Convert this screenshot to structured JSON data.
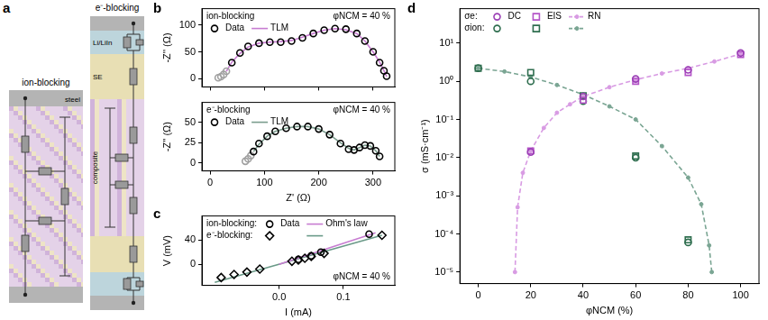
{
  "diagram": {
    "panel": "a",
    "ion_blocking": {
      "title": "ion-blocking",
      "current_collector": "steel"
    },
    "e_blocking": {
      "title": "e⁻-blocking",
      "electrode": "Li/LiIn",
      "electrolyte": "SE",
      "composite": "composite"
    }
  },
  "chart_data": [
    {
      "panel": "b",
      "type": "scatter",
      "grid": false,
      "legend": "upper left",
      "tick_labels": "y",
      "annotation": "φNCM = 40 %",
      "ylabel": "-Z'' (Ω)",
      "xlim": [
        -15,
        340
      ],
      "xticks": [
        0,
        100,
        200,
        300
      ],
      "ylim": [
        -15,
        130
      ],
      "yticks": [
        0,
        50,
        100
      ],
      "series": [
        {
          "name": "Data",
          "group": "ion-blocking",
          "marker": "open_circle",
          "line_style": "none",
          "colors": [
            "#a0a0a0",
            "#a0a0a0",
            "#a0a0a0",
            "#a0a0a0",
            "#000000",
            "#000000",
            "#000000",
            "#000000",
            "#000000",
            "#000000",
            "#000000",
            "#000000",
            "#000000",
            "#000000",
            "#000000",
            "#000000",
            "#000000",
            "#000000",
            "#000000",
            "#000000",
            "#000000",
            "#000000"
          ],
          "x": [
            15,
            20,
            25,
            30,
            40,
            55,
            70,
            90,
            110,
            130,
            150,
            170,
            190,
            210,
            230,
            250,
            270,
            285,
            300,
            312,
            320,
            325
          ],
          "values": [
            2,
            4,
            8,
            14,
            30,
            48,
            60,
            66,
            68,
            68,
            70,
            76,
            84,
            90,
            93,
            92,
            84,
            70,
            50,
            30,
            15,
            5
          ]
        },
        {
          "name": "TLM",
          "group": "ion-blocking",
          "marker": "none",
          "line_style": "solid",
          "color": "#c77cd1",
          "x": [
            30,
            40,
            55,
            70,
            90,
            110,
            130,
            150,
            170,
            190,
            210,
            230,
            250,
            270,
            285,
            300,
            312,
            320,
            325
          ],
          "values": [
            14,
            31,
            47,
            59,
            66,
            68,
            69,
            71,
            77,
            84,
            90,
            93,
            91,
            84,
            70,
            50,
            31,
            15,
            4
          ]
        }
      ]
    },
    {
      "type": "scatter",
      "grid": false,
      "legend": "upper left",
      "annotation": "φNCM = 40 %",
      "xlabel": "Z' (Ω)",
      "ylabel": "-Z'' (Ω)",
      "xlim": [
        -15,
        340
      ],
      "xticks": [
        0,
        100,
        200,
        300
      ],
      "ylim": [
        -10,
        75
      ],
      "yticks": [
        0,
        25,
        50
      ],
      "series": [
        {
          "name": "Data",
          "group": "e⁻-blocking",
          "marker": "open_circle",
          "line_style": "none",
          "colors": [
            "#a0a0a0",
            "#a0a0a0",
            "#a0a0a0",
            "#000000",
            "#000000",
            "#000000",
            "#000000",
            "#000000",
            "#000000",
            "#000000",
            "#000000",
            "#000000",
            "#000000",
            "#000000",
            "#000000",
            "#000000",
            "#000000",
            "#000000",
            "#000000",
            "#000000"
          ],
          "x": [
            65,
            70,
            75,
            80,
            90,
            105,
            120,
            140,
            160,
            180,
            200,
            220,
            240,
            255,
            265,
            275,
            285,
            295,
            305,
            312
          ],
          "values": [
            2,
            5,
            9,
            14,
            24,
            33,
            39,
            43,
            45,
            45,
            42,
            35,
            24,
            17,
            16,
            19,
            22,
            21,
            15,
            8
          ]
        },
        {
          "name": "TLM",
          "group": "e⁻-blocking",
          "marker": "none",
          "line_style": "solid",
          "color": "#7a9c8d",
          "x": [
            80,
            90,
            105,
            120,
            140,
            160,
            180,
            200,
            220,
            240,
            255,
            265,
            275,
            285,
            295,
            305,
            312
          ],
          "values": [
            14,
            23,
            33,
            39,
            43,
            45,
            45,
            42,
            35,
            25,
            18,
            16,
            19,
            22,
            21,
            15,
            8
          ]
        }
      ]
    },
    {
      "panel": "c",
      "type": "scatter",
      "grid": false,
      "legend": "upper left",
      "annotation": "φNCM = 40 %",
      "xlabel": "I (mA)",
      "ylabel": "V (mV)",
      "xlim": [
        -0.12,
        0.18
      ],
      "xticks": [
        {
          "value": 0,
          "label": "0.0"
        },
        0.1
      ],
      "ylim": [
        -35,
        80
      ],
      "yticks": [
        0,
        40
      ],
      "series": [
        {
          "name": "Data",
          "group": "ion-blocking:",
          "marker": "open_circle",
          "line_style": "none",
          "color": "#000000",
          "x": [
            0.03,
            0.05,
            0.065,
            0.14
          ],
          "values": [
            8,
            14,
            20,
            50
          ]
        },
        {
          "name": "Ohm's law",
          "group": "ion-blocking:",
          "marker": "none",
          "line_style": "solid",
          "color": "#c77cd1",
          "x": [
            0,
            0.15
          ],
          "values": [
            0,
            52
          ]
        },
        {
          "name": "Data",
          "group": "e⁻-blocking:",
          "marker": "open_diamond",
          "line_style": "none",
          "color": "#000000",
          "x": [
            -0.09,
            -0.07,
            -0.05,
            -0.03,
            0.02,
            0.03,
            0.04,
            0.05,
            0.07,
            0.16
          ],
          "values": [
            -22,
            -17,
            -13,
            -8,
            5,
            7,
            10,
            13,
            18,
            48
          ]
        },
        {
          "name": "Ohm's law",
          "group": "e⁻-blocking:",
          "marker": "none",
          "line_style": "solid",
          "color": "#6a9a88",
          "x": [
            -0.1,
            0.16
          ],
          "values": [
            -30,
            48
          ]
        }
      ]
    },
    {
      "panel": "d",
      "type": "scatter",
      "grid": false,
      "legend": "upper left",
      "log": "y",
      "xlabel": "φNCM (%)",
      "ylabel": "σ (mS·cm⁻¹)",
      "xlim": [
        -7,
        107
      ],
      "xticks": [
        0,
        20,
        40,
        60,
        80,
        100
      ],
      "ylim": [
        5e-06,
        80
      ],
      "yticks": [
        {
          "value": 1e-05,
          "label": "10⁻⁵"
        },
        {
          "value": 0.0001,
          "label": "10⁻⁴"
        },
        {
          "value": 0.001,
          "label": "10⁻³"
        },
        {
          "value": 0.01,
          "label": "10⁻²"
        },
        {
          "value": 0.1,
          "label": "10⁻¹"
        },
        {
          "value": 1,
          "label": "10⁰"
        },
        {
          "value": 10,
          "label": "10¹"
        }
      ],
      "series": [
        {
          "name": "DC",
          "group": "σe:",
          "marker": "open_circle",
          "line_style": "none",
          "color": "#9b3fb5",
          "x": [
            20,
            40,
            60,
            80,
            100
          ],
          "values": [
            0.014,
            0.4,
            1.15,
            2.0,
            5.5
          ]
        },
        {
          "name": "EIS",
          "group": "σe:",
          "marker": "open_square",
          "line_style": "none",
          "color": "#b455c8",
          "x": [
            20,
            40,
            60,
            80,
            100
          ],
          "values": [
            0.015,
            0.32,
            1.0,
            1.7,
            5.0
          ]
        },
        {
          "name": "RN",
          "group": "σe:",
          "marker": "dot",
          "line_style": "dashed",
          "color": "#d89be3",
          "x": [
            14,
            15,
            17,
            20,
            25,
            30,
            35,
            40,
            50,
            60,
            70,
            80,
            90,
            100
          ],
          "values": [
            1e-05,
            0.0005,
            0.004,
            0.015,
            0.06,
            0.15,
            0.25,
            0.4,
            0.7,
            1.1,
            1.6,
            2.2,
            3.3,
            5.2
          ]
        },
        {
          "name": "DC",
          "group": "σion:",
          "marker": "open_circle",
          "line_style": "none",
          "color": "#2f6e4f",
          "x": [
            0,
            20,
            40,
            60,
            80
          ],
          "values": [
            2.2,
            1.0,
            0.3,
            0.01,
            6e-05
          ]
        },
        {
          "name": "EIS",
          "group": "σion:",
          "marker": "open_square",
          "line_style": "none",
          "color": "#2f6e4f",
          "x": [
            0,
            20,
            40,
            60,
            80
          ],
          "values": [
            2.2,
            1.7,
            0.42,
            0.011,
            7e-05
          ]
        },
        {
          "name": "RN",
          "group": "σion:",
          "marker": "dot",
          "line_style": "dashed",
          "color": "#7aa593",
          "x": [
            0,
            10,
            20,
            30,
            40,
            50,
            60,
            70,
            80,
            85,
            88,
            89
          ],
          "values": [
            2.2,
            1.8,
            1.3,
            0.8,
            0.45,
            0.22,
            0.1,
            0.02,
            0.003,
            0.0006,
            5e-05,
            1e-05
          ]
        }
      ]
    }
  ]
}
